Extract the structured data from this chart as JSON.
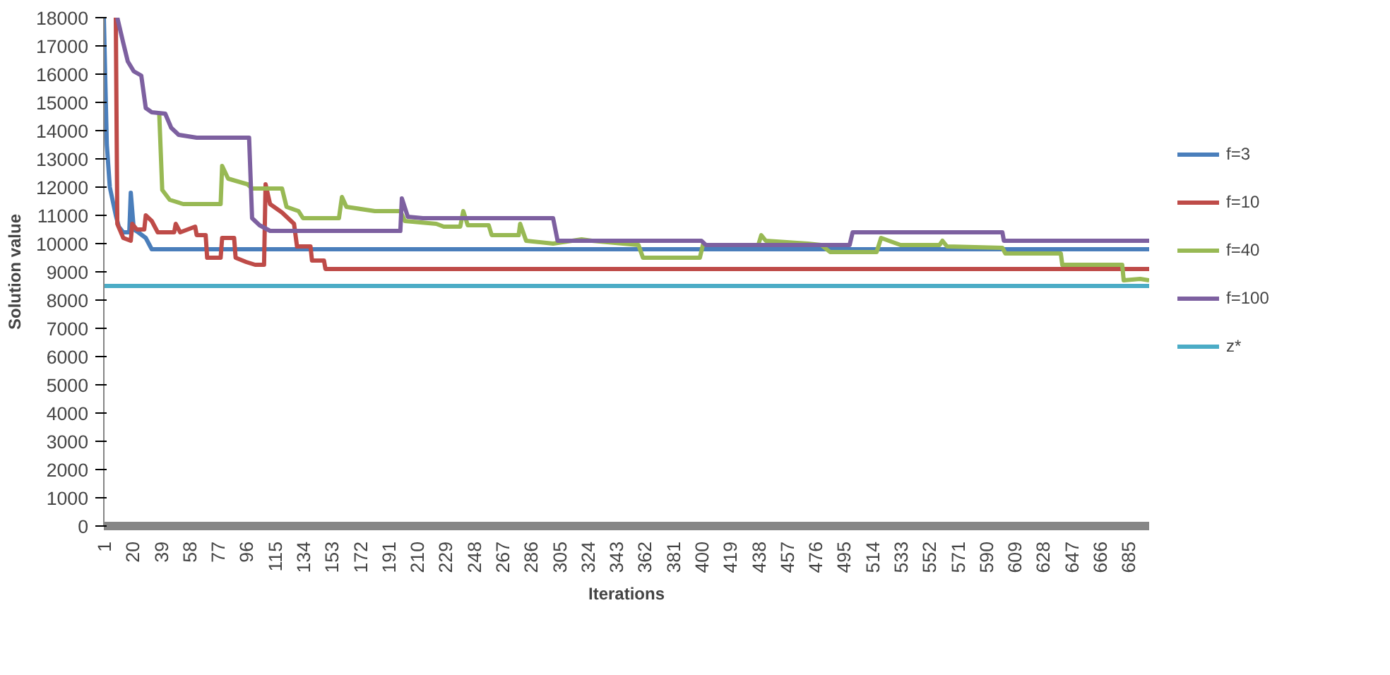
{
  "chart_data": {
    "type": "line",
    "xlabel": "Iterations",
    "ylabel": "Solution value",
    "xlim": [
      1,
      699
    ],
    "xticks": [
      1,
      20,
      39,
      58,
      77,
      96,
      115,
      134,
      153,
      172,
      191,
      210,
      229,
      248,
      267,
      286,
      305,
      324,
      343,
      362,
      381,
      400,
      419,
      438,
      457,
      476,
      495,
      514,
      533,
      552,
      571,
      590,
      609,
      628,
      647,
      666,
      685
    ],
    "ylim": [
      0,
      18000
    ],
    "yticks": [
      0,
      1000,
      2000,
      3000,
      4000,
      5000,
      6000,
      7000,
      8000,
      9000,
      10000,
      11000,
      12000,
      13000,
      14000,
      15000,
      16000,
      17000,
      18000
    ],
    "grid": false,
    "legend": "right",
    "marker": "none",
    "line_style": "solid",
    "series": [
      {
        "name": "f=3",
        "color": "#4a7ebb",
        "x": [
          1,
          3,
          5,
          7,
          9,
          11,
          14,
          18,
          19,
          21,
          24,
          29,
          33,
          699
        ],
        "values": [
          18000,
          13500,
          12000,
          11500,
          11000,
          10600,
          10400,
          10400,
          11800,
          10500,
          10400,
          10200,
          9800,
          9800
        ]
      },
      {
        "name": "f=10",
        "color": "#be4b48",
        "x": [
          9,
          10,
          14,
          19,
          20,
          23,
          28,
          29,
          33,
          37,
          48,
          49,
          52,
          62,
          63,
          69,
          70,
          79,
          80,
          88,
          89,
          96,
          102,
          108,
          109,
          112,
          120,
          128,
          130,
          139,
          140,
          148,
          149,
          699
        ],
        "values": [
          18000,
          10700,
          10200,
          10100,
          10700,
          10500,
          10500,
          11000,
          10800,
          10400,
          10400,
          10700,
          10400,
          10600,
          10300,
          10300,
          9500,
          9500,
          10200,
          10200,
          9500,
          9350,
          9250,
          9250,
          12100,
          11400,
          11100,
          10700,
          9900,
          9900,
          9400,
          9400,
          9100,
          9100
        ]
      },
      {
        "name": "f=40",
        "color": "#98b954",
        "x": [
          38,
          40,
          45,
          54,
          79,
          80,
          84,
          97,
          100,
          120,
          123,
          131,
          134,
          158,
          160,
          163,
          182,
          199,
          202,
          223,
          228,
          239,
          241,
          244,
          258,
          260,
          278,
          279,
          283,
          301,
          320,
          327,
          358,
          361,
          399,
          401,
          438,
          440,
          443,
          471,
          480,
          486,
          517,
          520,
          533,
          559,
          561,
          564,
          601,
          603,
          640,
          641,
          681,
          682,
          693,
          699
        ],
        "values": [
          14600,
          11900,
          11550,
          11400,
          11400,
          12750,
          12300,
          12100,
          11950,
          11950,
          11300,
          11150,
          10900,
          10900,
          11650,
          11300,
          11150,
          11150,
          10800,
          10700,
          10600,
          10600,
          11150,
          10650,
          10650,
          10300,
          10300,
          10700,
          10100,
          10000,
          10150,
          10100,
          9950,
          9500,
          9500,
          9950,
          9950,
          10300,
          10100,
          10000,
          9950,
          9700,
          9700,
          10200,
          9950,
          9950,
          10100,
          9900,
          9850,
          9650,
          9650,
          9250,
          9250,
          8700,
          8750,
          8700
        ]
      },
      {
        "name": "f=100",
        "color": "#7d60a0",
        "x": [
          10,
          14,
          17,
          21,
          26,
          29,
          33,
          42,
          46,
          51,
          63,
          98,
          100,
          105,
          112,
          199,
          200,
          204,
          214,
          223,
          301,
          304,
          400,
          403,
          499,
          501,
          601,
          602,
          699
        ],
        "values": [
          18000,
          17100,
          16450,
          16100,
          15950,
          14800,
          14650,
          14600,
          14100,
          13850,
          13750,
          13750,
          10900,
          10650,
          10450,
          10450,
          11600,
          10950,
          10900,
          10900,
          10900,
          10100,
          10100,
          9950,
          9950,
          10400,
          10400,
          10100,
          10100
        ]
      },
      {
        "name": "z*",
        "color": "#4bacc6",
        "x": [
          1,
          699
        ],
        "values": [
          8500,
          8500
        ]
      }
    ]
  }
}
